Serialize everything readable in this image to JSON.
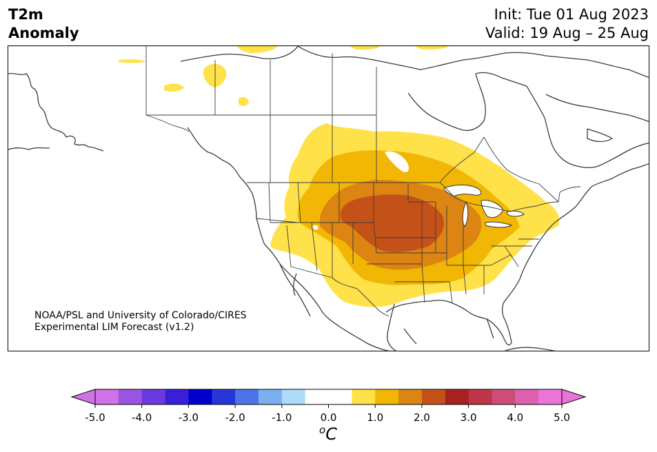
{
  "title": {
    "variable_line1": "T2m",
    "variable_line2": "Anomaly",
    "init": "Init: Tue 01 Aug 2023",
    "valid": "Valid: 19 Aug – 25 Aug"
  },
  "credit": {
    "line1": "NOAA/PSL and University of Colorado/CIRES",
    "line2": "Experimental LIM Forecast (v1.2)"
  },
  "colorbar": {
    "unit_label": "oC",
    "tick_labels": [
      "-5.0",
      "-4.0",
      "-3.0",
      "-2.0",
      "-1.0",
      "0.0",
      "1.0",
      "2.0",
      "3.0",
      "4.0",
      "5.0"
    ],
    "colors": [
      "#d072e8",
      "#9b55e0",
      "#6a3ae0",
      "#3a1fd8",
      "#0000cc",
      "#2636d8",
      "#4e73e8",
      "#7ab0f0",
      "#aedcf8",
      "#ffffff",
      "#ffffff",
      "#ffe14a",
      "#f2b705",
      "#dc8512",
      "#c45218",
      "#a82020",
      "#bf3548",
      "#cd4d7a",
      "#dc62b0",
      "#ea75d8"
    ],
    "under_color": "#d072e8",
    "over_color": "#ea75d8",
    "min": -5.0,
    "max": 5.0
  },
  "anomaly_levels": {
    "level_0_5": "#ffe14a",
    "level_1_0": "#f2b705",
    "level_1_5": "#dc8512",
    "level_2_0": "#c45218"
  }
}
